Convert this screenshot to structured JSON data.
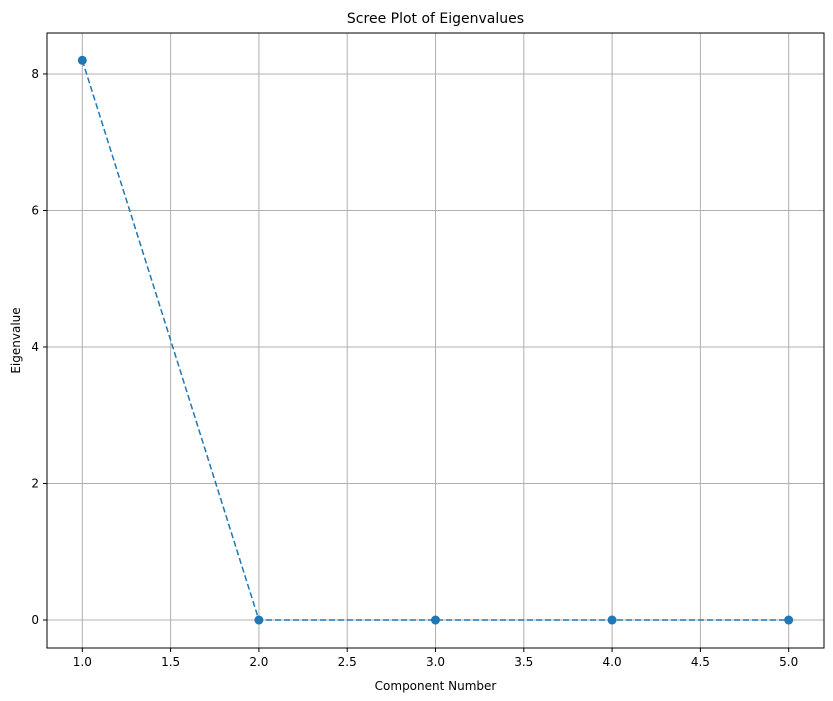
{
  "chart_data": {
    "type": "line",
    "title": "Scree Plot of Eigenvalues",
    "xlabel": "Component Number",
    "ylabel": "Eigenvalue",
    "x": [
      1,
      2,
      3,
      4,
      5
    ],
    "series": [
      {
        "values": [
          8.2,
          0.0,
          0.0,
          0.0,
          0.0
        ],
        "color": "#1f77b4",
        "line_style": "dashed",
        "marker": "circle"
      }
    ],
    "xlim": [
      0.8,
      5.2
    ],
    "ylim": [
      -0.41,
      8.6
    ],
    "x_ticks": [
      1.0,
      1.5,
      2.0,
      2.5,
      3.0,
      3.5,
      4.0,
      4.5,
      5.0
    ],
    "x_tick_labels": [
      "1.0",
      "1.5",
      "2.0",
      "2.5",
      "3.0",
      "3.5",
      "4.0",
      "4.5",
      "5.0"
    ],
    "y_ticks": [
      0,
      2,
      4,
      6,
      8
    ],
    "y_tick_labels": [
      "0",
      "2",
      "4",
      "6",
      "8"
    ],
    "grid": true,
    "grid_color": "#b0b0b0"
  }
}
